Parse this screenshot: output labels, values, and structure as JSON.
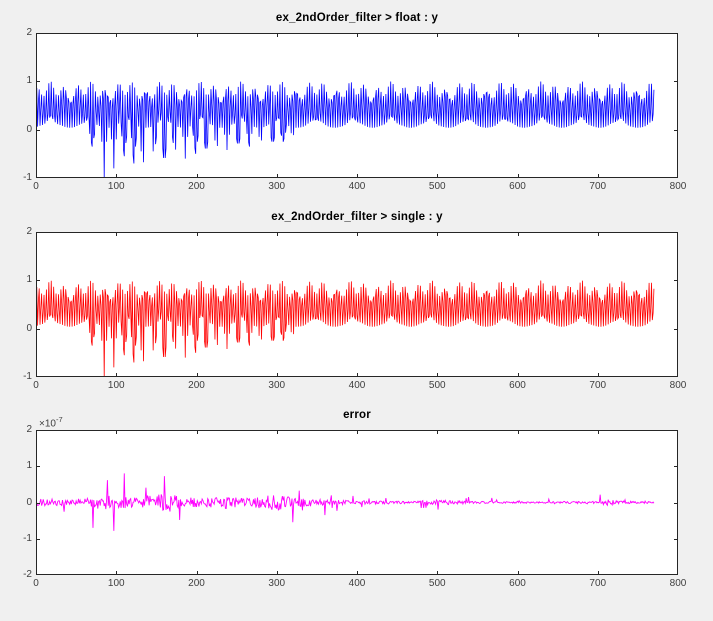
{
  "figure": {
    "background": "#f0f0f0",
    "axes_background": "#ffffff",
    "axis_color": "#262626",
    "tick_label_color": "#404040",
    "title_color": "#000000"
  },
  "chart_data": [
    {
      "type": "line",
      "title": "ex_2ndOrder_filter > float : y",
      "color": "#0000ff",
      "xlim": [
        0,
        800
      ],
      "ylim": [
        -1,
        2
      ],
      "xticks": [
        0,
        100,
        200,
        300,
        400,
        500,
        600,
        700,
        800
      ],
      "yticks": [
        -1,
        0,
        1,
        2
      ],
      "x_end": 770,
      "grid": false,
      "legend": null,
      "signal": {
        "kind": "dense-oscillation-band",
        "band_low": 0.04,
        "band_high": 1.0,
        "dip_centers": [
          70,
          85,
          97,
          110,
          122,
          133,
          147,
          160,
          173,
          186,
          199,
          212,
          225,
          238,
          252,
          266,
          280,
          295,
          308,
          320
        ],
        "dip_depths": [
          -0.35,
          -1.0,
          -0.8,
          -0.55,
          -0.7,
          -0.9,
          -0.6,
          -0.78,
          -0.55,
          -0.6,
          -0.5,
          -0.52,
          -0.45,
          -0.42,
          -0.38,
          -0.35,
          -0.3,
          -0.33,
          -0.25,
          -0.15
        ]
      }
    },
    {
      "type": "line",
      "title": "ex_2ndOrder_filter > single : y",
      "color": "#ff0000",
      "xlim": [
        0,
        800
      ],
      "ylim": [
        -1,
        2
      ],
      "xticks": [
        0,
        100,
        200,
        300,
        400,
        500,
        600,
        700,
        800
      ],
      "yticks": [
        -1,
        0,
        1,
        2
      ],
      "x_end": 770,
      "grid": false,
      "legend": null,
      "signal": {
        "kind": "dense-oscillation-band",
        "band_low": 0.04,
        "band_high": 1.0,
        "dip_centers": [
          70,
          85,
          97,
          110,
          122,
          133,
          147,
          160,
          173,
          186,
          199,
          212,
          225,
          238,
          252,
          266,
          280,
          295,
          308,
          320
        ],
        "dip_depths": [
          -0.35,
          -1.0,
          -0.8,
          -0.55,
          -0.7,
          -0.9,
          -0.6,
          -0.78,
          -0.55,
          -0.6,
          -0.5,
          -0.52,
          -0.45,
          -0.42,
          -0.38,
          -0.35,
          -0.3,
          -0.33,
          -0.25,
          -0.15
        ]
      }
    },
    {
      "type": "line",
      "title": "error",
      "color": "#ff00ff",
      "xlim": [
        0,
        800
      ],
      "ylim": [
        -2,
        2
      ],
      "xticks": [
        0,
        100,
        200,
        300,
        400,
        500,
        600,
        700,
        800
      ],
      "yticks": [
        -2,
        -1,
        0,
        1,
        2
      ],
      "x_end": 770,
      "grid": false,
      "legend": null,
      "exponent": {
        "base": "×10",
        "power": "-7"
      },
      "units_scale": "1e-7",
      "amp_envelope": [
        [
          0,
          0.5
        ],
        [
          40,
          0.35
        ],
        [
          60,
          0.55
        ],
        [
          80,
          0.9
        ],
        [
          100,
          0.8
        ],
        [
          130,
          0.6
        ],
        [
          165,
          1.3
        ],
        [
          180,
          0.7
        ],
        [
          210,
          0.5
        ],
        [
          235,
          0.8
        ],
        [
          260,
          0.5
        ],
        [
          300,
          1.05
        ],
        [
          320,
          0.6
        ],
        [
          340,
          0.5
        ],
        [
          360,
          0.35
        ],
        [
          400,
          0.25
        ],
        [
          430,
          0.2
        ],
        [
          470,
          0.15
        ],
        [
          510,
          0.3
        ],
        [
          540,
          0.15
        ],
        [
          580,
          0.12
        ],
        [
          620,
          0.1
        ],
        [
          660,
          0.12
        ],
        [
          700,
          0.15
        ],
        [
          715,
          0.45
        ],
        [
          725,
          0.2
        ],
        [
          770,
          0.1
        ]
      ]
    }
  ]
}
